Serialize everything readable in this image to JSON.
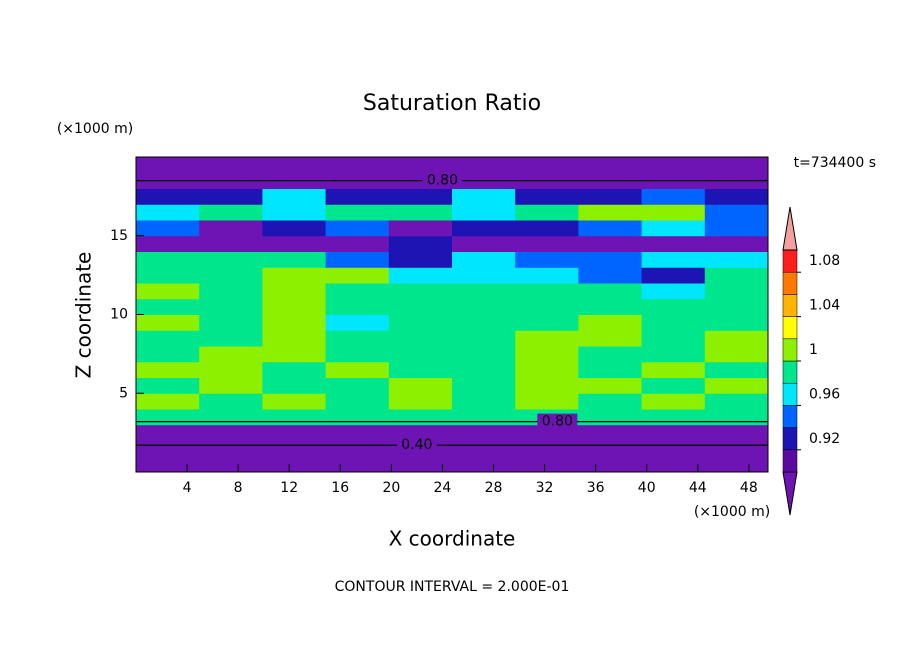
{
  "chart_data": {
    "type": "contour",
    "title": "Saturation Ratio",
    "subtitle": "t=734400 s",
    "x_label": "X coordinate",
    "y_label": "Z coordinate",
    "x_unit": "(×1000 m)",
    "y_unit": "(×1000 m)",
    "footnote": "CONTOUR INTERVAL = 2.000E-01",
    "xlim": [
      0,
      49.5
    ],
    "ylim": [
      0,
      20
    ],
    "xticks": [
      4,
      8,
      12,
      16,
      20,
      24,
      28,
      32,
      36,
      40,
      44,
      48
    ],
    "yticks": [
      5,
      10,
      15
    ],
    "z": [
      [
        0.4,
        0.4,
        0.4,
        0.4,
        0.4,
        0.4,
        0.4,
        0.4,
        0.4,
        0.4
      ],
      [
        0.5,
        0.5,
        0.5,
        0.5,
        0.5,
        0.5,
        0.5,
        0.5,
        0.5,
        0.5
      ],
      [
        0.7,
        0.7,
        0.7,
        0.7,
        0.7,
        0.7,
        0.7,
        0.7,
        0.7,
        0.7
      ],
      [
        0.99,
        0.99,
        0.99,
        0.99,
        0.99,
        0.99,
        0.99,
        0.99,
        0.99,
        0.99
      ],
      [
        1.01,
        0.99,
        1.01,
        0.99,
        1.01,
        0.99,
        1.01,
        0.99,
        1.01,
        0.99
      ],
      [
        0.99,
        1.01,
        0.99,
        0.99,
        1.01,
        0.99,
        1.01,
        1.01,
        0.99,
        1.01
      ],
      [
        1.01,
        1.01,
        0.99,
        1.01,
        0.99,
        0.99,
        1.01,
        0.99,
        1.01,
        0.99
      ],
      [
        0.99,
        1.01,
        1.01,
        0.99,
        0.99,
        0.99,
        1.01,
        0.99,
        0.99,
        1.01
      ],
      [
        0.99,
        0.99,
        1.01,
        0.99,
        0.99,
        0.99,
        1.01,
        1.01,
        0.99,
        1.01
      ],
      [
        1.01,
        0.99,
        1.01,
        0.97,
        0.99,
        0.99,
        0.99,
        1.01,
        0.99,
        0.99
      ],
      [
        0.99,
        0.99,
        1.01,
        0.99,
        0.99,
        0.99,
        0.99,
        0.99,
        0.99,
        0.99
      ],
      [
        1.01,
        0.99,
        1.01,
        0.99,
        0.99,
        0.99,
        0.99,
        0.99,
        0.97,
        0.99
      ],
      [
        0.99,
        0.99,
        1.01,
        1.01,
        0.97,
        0.97,
        0.97,
        0.95,
        0.93,
        0.99
      ],
      [
        0.99,
        0.99,
        0.99,
        0.95,
        0.93,
        0.97,
        0.95,
        0.95,
        0.97,
        0.97
      ],
      [
        0.89,
        0.89,
        0.89,
        0.89,
        0.93,
        0.89,
        0.89,
        0.89,
        0.89,
        0.89
      ],
      [
        0.95,
        0.89,
        0.93,
        0.95,
        0.89,
        0.93,
        0.93,
        0.95,
        0.97,
        0.95
      ],
      [
        0.97,
        0.99,
        0.97,
        0.99,
        0.99,
        0.97,
        0.99,
        1.01,
        1.01,
        0.95
      ],
      [
        0.93,
        0.93,
        0.97,
        0.93,
        0.93,
        0.97,
        0.93,
        0.93,
        0.95,
        0.93
      ],
      [
        0.8,
        0.8,
        0.8,
        0.8,
        0.8,
        0.8,
        0.8,
        0.8,
        0.8,
        0.8
      ],
      [
        0.8,
        0.8,
        0.8,
        0.8,
        0.8,
        0.8,
        0.8,
        0.8,
        0.8,
        0.8
      ]
    ],
    "levels": [
      0.9,
      0.92,
      0.94,
      0.96,
      0.98,
      1,
      1.02,
      1.04,
      1.06,
      1.08,
      1.1
    ],
    "colors": [
      "#6e14b4",
      "#5a0aa0",
      "#1e14b4",
      "#0064ff",
      "#00e6ff",
      "#00e68c",
      "#8cf000",
      "#ffff00",
      "#ffb400",
      "#ff7800",
      "#ff1e1e",
      "#f5a0a0"
    ],
    "colorbar_ticks": [
      0.92,
      0.96,
      1,
      1.04,
      1.08
    ],
    "contour_labels": [
      {
        "value": 0.8,
        "label": "0.80"
      },
      {
        "value": 0.8,
        "label": "0.80"
      },
      {
        "value": 0.4,
        "label": "0.40"
      }
    ]
  }
}
